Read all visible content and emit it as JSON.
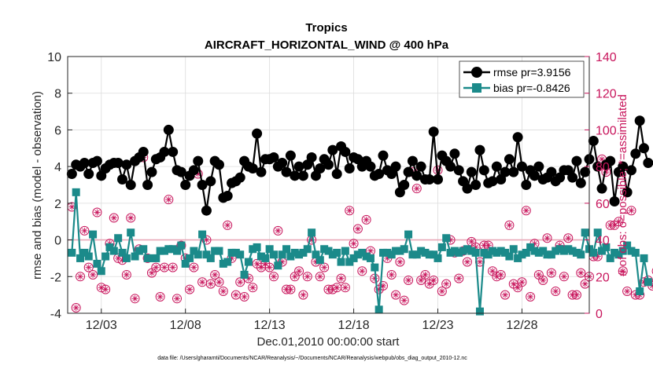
{
  "chart_data": {
    "type": "line",
    "title": "Tropics",
    "subtitle": "AIRCRAFT_HORIZONTAL_WIND @ 400 hPa",
    "xlabel": "Dec.01,2010 00:00:00 start",
    "ylabel_left": "rmse and bias (model - observation)",
    "ylabel_right": "# of obs: o=possible; *=assimilated",
    "footnote": "data file: /Users/gharamti/Documents/NCAR/Reanalysis/~/Documents/NCAR/Reanalysis/webpub/obs_diag_output_2010-12.nc",
    "xlim_days": [
      1.0,
      32.0
    ],
    "ylim_left": [
      -4,
      10
    ],
    "ylim_right": [
      0,
      140
    ],
    "yticks_left": [
      -4,
      -2,
      0,
      2,
      4,
      6,
      8,
      10
    ],
    "yticks_right": [
      0,
      20,
      40,
      60,
      80,
      100,
      120,
      140
    ],
    "xticks": [
      {
        "day": 3,
        "label": "12/03"
      },
      {
        "day": 8,
        "label": "12/08"
      },
      {
        "day": 13,
        "label": "12/13"
      },
      {
        "day": 18,
        "label": "12/18"
      },
      {
        "day": 23,
        "label": "12/23"
      },
      {
        "day": 28,
        "label": "12/28"
      }
    ],
    "grid": true,
    "legend_position": "top-right",
    "zero_line": 0,
    "x_start_day": 1.25,
    "x_step_days": 0.25,
    "series": [
      {
        "name": "rmse",
        "legend": "rmse pr=3.9156",
        "color": "#000000",
        "axis": "left",
        "values": [
          3.6,
          4.1,
          4.0,
          4.2,
          3.6,
          4.2,
          4.3,
          3.5,
          3.9,
          4.1,
          4.2,
          4.2,
          3.3,
          4.1,
          3.0,
          4.3,
          4.5,
          4.8,
          3.0,
          3.7,
          4.4,
          4.5,
          4.8,
          6.0,
          4.8,
          3.8,
          3.7,
          3.0,
          3.5,
          3.8,
          4.3,
          3.0,
          1.6,
          3.2,
          4.3,
          4.1,
          2.3,
          2.4,
          3.1,
          3.2,
          3.4,
          4.3,
          4.0,
          3.9,
          5.8,
          3.7,
          4.4,
          4.4,
          4.5,
          4.0,
          4.2,
          3.7,
          4.6,
          3.5,
          4.0,
          3.5,
          4.1,
          4.5,
          3.5,
          3.9,
          4.4,
          4.1,
          4.9,
          3.6,
          5.1,
          4.8,
          3.9,
          4.5,
          4.4,
          4.0,
          4.3,
          4.0,
          3.5,
          3.6,
          4.6,
          3.8,
          3.6,
          4.0,
          2.6,
          3.0,
          3.7,
          4.3,
          3.5,
          4.0,
          3.3,
          3.3,
          5.9,
          3.3,
          4.6,
          4.3,
          4.0,
          4.7,
          3.8,
          3.2,
          2.8,
          3.7,
          3.0,
          4.9,
          3.8,
          3.1,
          3.2,
          4.0,
          3.3,
          3.7,
          4.4,
          3.7,
          5.6,
          4.0,
          3.0,
          3.8,
          3.5,
          4.0,
          3.3,
          3.4,
          3.7,
          3.2,
          3.4,
          3.8,
          3.8,
          3.4,
          4.3,
          3.1,
          3.7,
          4.4,
          5.4,
          4.0,
          2.8,
          4.1,
          4.3,
          2.1,
          3.7,
          4.0,
          2.6,
          3.8,
          4.7,
          6.5,
          5.0,
          4.2
        ],
        "marker": "circle"
      },
      {
        "name": "bias",
        "legend": "bias pr=-0.8426",
        "color": "#1b8a8a",
        "axis": "left",
        "values": [
          -0.7,
          2.6,
          -1.0,
          -0.7,
          -0.9,
          0.3,
          -1.3,
          -1.7,
          -0.9,
          -0.4,
          -0.6,
          0.1,
          -0.7,
          -1.0,
          0.4,
          -0.9,
          -0.6,
          -0.5,
          -1.0,
          -1.0,
          -1.0,
          -0.6,
          -0.6,
          -0.5,
          -0.5,
          -0.6,
          -0.3,
          -1.3,
          -1.0,
          -0.6,
          -0.8,
          0.3,
          -0.8,
          -1.0,
          -0.6,
          -0.6,
          -1.3,
          -1.2,
          -0.7,
          -0.7,
          -0.8,
          -1.9,
          -1.2,
          -0.5,
          -0.4,
          -0.9,
          -1.0,
          -0.5,
          -0.8,
          -1.4,
          -0.8,
          -0.5,
          -0.9,
          -0.7,
          -0.8,
          -0.7,
          -0.5,
          0.4,
          -0.8,
          -1.1,
          -0.5,
          -0.6,
          -0.8,
          -0.7,
          -1.2,
          -0.6,
          -1.2,
          -1.0,
          -0.8,
          -0.7,
          -0.9,
          -1.0,
          -1.5,
          -3.8,
          -0.7,
          -0.7,
          -0.8,
          -0.6,
          -0.6,
          -0.5,
          0.3,
          -0.8,
          -0.8,
          -0.6,
          -0.7,
          -0.8,
          -0.8,
          -1.0,
          -0.4,
          0.1,
          -0.7,
          -0.6,
          -0.7,
          -0.6,
          -0.5,
          -0.6,
          -0.7,
          -3.9,
          -0.7,
          -0.8,
          -0.6,
          -0.7,
          -0.6,
          -0.7,
          -0.9,
          -0.5,
          -1.0,
          -0.8,
          -0.7,
          -0.4,
          -0.6,
          -0.7,
          -0.6,
          -0.8,
          -0.8,
          -0.6,
          -0.5,
          -0.6,
          -0.5,
          -0.6,
          -0.7,
          -0.8,
          0.4,
          -0.5,
          -0.7,
          0.4,
          -0.6,
          -0.4,
          -1.0,
          -0.7,
          -0.8,
          -0.6,
          -0.3,
          -0.6,
          -0.7,
          -2.8,
          -1.0,
          -2.3
        ],
        "marker": "square"
      },
      {
        "name": "obs possible",
        "color": "#c8155c",
        "axis": "right",
        "values": [
          58,
          3,
          20,
          45,
          25,
          21,
          55,
          14,
          13,
          38,
          52,
          30,
          29,
          21,
          52,
          8,
          35,
          85,
          30,
          22,
          25,
          9,
          25,
          62,
          25,
          8,
          37,
          30,
          13,
          25,
          76,
          17,
          40,
          16,
          21,
          17,
          12,
          48,
          30,
          10,
          17,
          9,
          19,
          14,
          27,
          25,
          27,
          25,
          20,
          45,
          28,
          13,
          13,
          20,
          23,
          10,
          20,
          40,
          28,
          20,
          25,
          13,
          13,
          14,
          19,
          14,
          56,
          38,
          46,
          23,
          51,
          34,
          19,
          13,
          15,
          30,
          21,
          10,
          28,
          7,
          18,
          77,
          68,
          18,
          21,
          16,
          18,
          78,
          12,
          16,
          40,
          33,
          19,
          34,
          28,
          39,
          36,
          28,
          37,
          37,
          23,
          20,
          21,
          10,
          48,
          16,
          14,
          17,
          56,
          9,
          38,
          21,
          18,
          41,
          22,
          12,
          37,
          20,
          41,
          10,
          10,
          22,
          16,
          20,
          31,
          31,
          84,
          77,
          48,
          48,
          50,
          23,
          12,
          56,
          10,
          10,
          17,
          18,
          15,
          23
        ],
        "marker": "open-circle"
      },
      {
        "name": "obs assimilated",
        "color": "#c8155c",
        "axis": "right",
        "values": [
          58,
          3,
          20,
          45,
          25,
          21,
          55,
          14,
          13,
          38,
          52,
          30,
          29,
          21,
          52,
          8,
          35,
          85,
          30,
          22,
          25,
          9,
          25,
          62,
          25,
          8,
          37,
          30,
          13,
          25,
          76,
          17,
          40,
          16,
          21,
          17,
          12,
          48,
          30,
          10,
          17,
          9,
          19,
          14,
          27,
          25,
          27,
          25,
          20,
          45,
          28,
          13,
          13,
          20,
          23,
          10,
          20,
          40,
          28,
          20,
          25,
          13,
          13,
          14,
          19,
          14,
          56,
          38,
          46,
          23,
          51,
          34,
          19,
          13,
          15,
          30,
          21,
          10,
          28,
          7,
          18,
          77,
          68,
          18,
          21,
          16,
          18,
          78,
          12,
          16,
          40,
          33,
          19,
          34,
          28,
          39,
          36,
          28,
          37,
          37,
          23,
          20,
          21,
          10,
          48,
          16,
          14,
          17,
          56,
          9,
          38,
          21,
          18,
          41,
          22,
          12,
          37,
          20,
          41,
          10,
          10,
          22,
          16,
          20,
          31,
          31,
          84,
          77,
          48,
          48,
          50,
          23,
          12,
          56,
          10,
          10,
          17,
          18,
          15,
          23
        ],
        "marker": "asterisk"
      }
    ]
  }
}
